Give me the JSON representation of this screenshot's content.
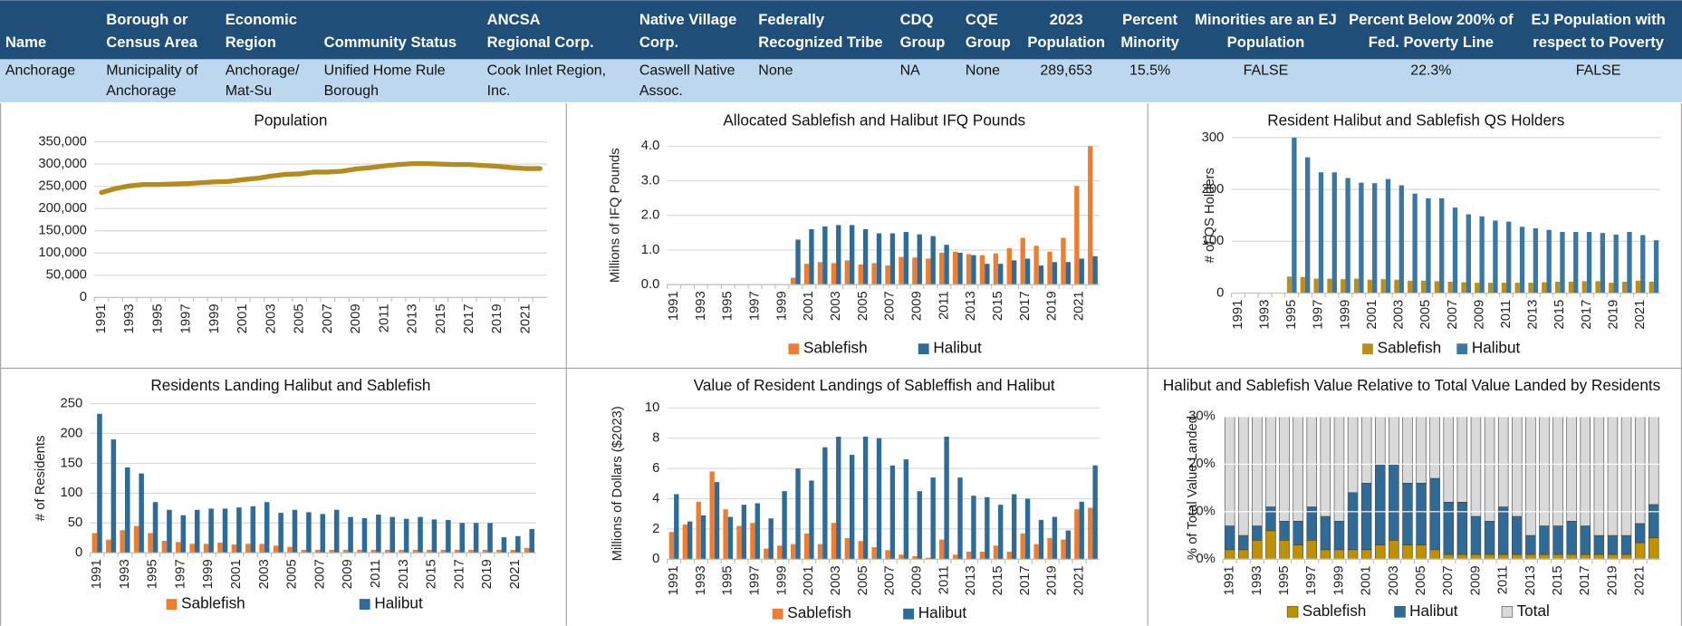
{
  "table": {
    "header": [
      [
        "Name"
      ],
      [
        "Borough or",
        "Census Area"
      ],
      [
        "Economic",
        "Region"
      ],
      [
        "Community Status"
      ],
      [
        "ANCSA",
        "Regional Corp."
      ],
      [
        "Native Village",
        "Corp."
      ],
      [
        "Federally",
        "Recognized Tribe"
      ],
      [
        "CDQ",
        "Group"
      ],
      [
        "CQE",
        "Group"
      ],
      [
        "2023",
        "Population"
      ],
      [
        "Percent",
        "Minority"
      ],
      [
        "Minorities are an EJ",
        "Population"
      ],
      [
        "Percent Below 200% of",
        "Fed. Poverty Line"
      ],
      [
        "EJ Population with",
        "respect to Poverty"
      ]
    ],
    "rows": [
      [
        [
          "Anchorage"
        ],
        [
          "Municipality of",
          "Anchorage"
        ],
        [
          "Anchorage/",
          "Mat-Su"
        ],
        [
          "Unified Home Rule",
          "Borough"
        ],
        [
          "Cook Inlet Region,",
          "Inc."
        ],
        [
          "Caswell Native",
          "Assoc."
        ],
        [
          "None"
        ],
        [
          "NA"
        ],
        [
          "None"
        ],
        [
          "289,653"
        ],
        [
          "15.5%"
        ],
        [
          "FALSE"
        ],
        [
          "22.3%"
        ],
        [
          "FALSE"
        ]
      ]
    ]
  },
  "chart_data": [
    {
      "type": "line",
      "title": "Population",
      "categories": [
        "1991",
        null,
        "1993",
        null,
        "1995",
        null,
        "1997",
        null,
        "1999",
        null,
        "2001",
        null,
        "2003",
        null,
        "2005",
        null,
        "2007",
        null,
        "2009",
        null,
        "2011",
        null,
        "2013",
        null,
        "2015",
        null,
        "2017",
        null,
        "2019",
        null,
        "2021",
        null
      ],
      "series": [
        {
          "name": "Population",
          "color": "#b58b1f",
          "values": [
            236000,
            245000,
            251000,
            254000,
            254000,
            255000,
            256000,
            258000,
            260000,
            261000,
            265000,
            268000,
            273000,
            277000,
            278000,
            282000,
            282000,
            284000,
            289000,
            292000,
            296000,
            299000,
            301000,
            301000,
            300000,
            299000,
            299000,
            297000,
            295000,
            292000,
            290000,
            290000
          ]
        }
      ],
      "ylim": [
        0,
        350000
      ],
      "yticks": [
        0,
        {
          "value": 50000,
          "label": "50,000"
        },
        {
          "value": 100000,
          "label": "100,000"
        },
        {
          "value": 150000,
          "label": "150,000"
        },
        {
          "value": 200000,
          "label": "200,000"
        },
        {
          "value": 250000,
          "label": "250,000"
        },
        {
          "value": 300000,
          "label": "300,000"
        },
        {
          "value": 350000,
          "label": "350,000"
        }
      ],
      "grid": true
    },
    {
      "type": "bar",
      "title": "Allocated Sablefish and Halibut IFQ Pounds",
      "y_label": "Millions of IFQ Pounds",
      "categories": [
        "1991",
        null,
        "1993",
        null,
        "1995",
        null,
        "1997",
        null,
        "1999",
        null,
        "2001",
        null,
        "2003",
        null,
        "2005",
        null,
        "2007",
        null,
        "2009",
        null,
        "2011",
        null,
        "2013",
        null,
        "2015",
        null,
        "2017",
        null,
        "2019",
        null,
        "2021",
        null
      ],
      "series": [
        {
          "name": "Sablefish",
          "color": "#ed7d31",
          "values": [
            0,
            0,
            0,
            0,
            0,
            0,
            0,
            0,
            0,
            0.2,
            0.6,
            0.65,
            0.62,
            0.7,
            0.58,
            0.62,
            0.55,
            0.8,
            0.78,
            0.75,
            0.92,
            0.95,
            0.88,
            0.85,
            0.9,
            1.05,
            1.35,
            1.12,
            0.95,
            1.35,
            2.85,
            4.0
          ]
        },
        {
          "name": "Halibut",
          "color": "#2e6b96",
          "values": [
            0,
            0,
            0,
            0,
            0,
            0,
            0,
            0,
            0,
            1.3,
            1.6,
            1.68,
            1.72,
            1.72,
            1.6,
            1.48,
            1.48,
            1.52,
            1.45,
            1.4,
            1.15,
            0.92,
            0.85,
            0.6,
            0.6,
            0.7,
            0.75,
            0.55,
            0.65,
            0.65,
            0.75,
            0.82
          ]
        }
      ],
      "ylim": [
        0,
        4
      ],
      "yticks": [
        {
          "value": 0,
          "label": "0.0"
        },
        {
          "value": 1,
          "label": "1.0"
        },
        {
          "value": 2,
          "label": "2.0"
        },
        {
          "value": 3,
          "label": "3.0"
        },
        {
          "value": 4,
          "label": "4.0"
        }
      ],
      "grid": true,
      "legend": "bottom"
    },
    {
      "type": "bar",
      "title": "Resident Halibut and Sablefish QS Holders",
      "y_label": "# of QS Holders",
      "categories": [
        "1991",
        null,
        "1993",
        null,
        "1995",
        null,
        "1997",
        null,
        "1999",
        null,
        "2001",
        null,
        "2003",
        null,
        "2005",
        null,
        "2007",
        null,
        "2009",
        null,
        "2011",
        null,
        "2013",
        null,
        "2015",
        null,
        "2017",
        null,
        "2019",
        null,
        "2021",
        null
      ],
      "series": [
        {
          "name": "Sablefish",
          "color": "#b8901f",
          "values": [
            0,
            0,
            0,
            0,
            32,
            31,
            28,
            28,
            27,
            28,
            26,
            27,
            26,
            24,
            24,
            23,
            22,
            21,
            20,
            20,
            20,
            20,
            20,
            21,
            22,
            22,
            23,
            23,
            20,
            22,
            24,
            22
          ]
        },
        {
          "name": "Halibut",
          "color": "#3a77a3",
          "values": [
            0,
            0,
            0,
            0,
            300,
            262,
            233,
            233,
            222,
            213,
            212,
            220,
            208,
            192,
            183,
            183,
            165,
            152,
            148,
            140,
            138,
            128,
            125,
            122,
            118,
            118,
            118,
            116,
            113,
            118,
            112,
            102
          ]
        }
      ],
      "ylim": [
        0,
        300
      ],
      "yticks": [
        0,
        100,
        200,
        300
      ],
      "grid": true,
      "legend": "bottom"
    },
    {
      "type": "bar",
      "title": "Residents Landing Halibut and Sablefish",
      "y_label": "# of Residents",
      "categories": [
        "1991",
        null,
        "1993",
        null,
        "1995",
        null,
        "1997",
        null,
        "1999",
        null,
        "2001",
        null,
        "2003",
        null,
        "2005",
        null,
        "2007",
        null,
        "2009",
        null,
        "2011",
        null,
        "2013",
        null,
        "2015",
        null,
        "2017",
        null,
        "2019",
        null,
        "2021",
        null
      ],
      "series": [
        {
          "name": "Sablefish",
          "color": "#ed7d31",
          "values": [
            33,
            22,
            38,
            45,
            33,
            20,
            18,
            15,
            15,
            17,
            14,
            15,
            15,
            12,
            10,
            5,
            5,
            5,
            5,
            5,
            5,
            5,
            5,
            5,
            5,
            5,
            5,
            5,
            5,
            5,
            5,
            8
          ]
        },
        {
          "name": "Halibut",
          "color": "#2e6b96",
          "values": [
            233,
            190,
            143,
            133,
            85,
            72,
            63,
            72,
            74,
            74,
            76,
            78,
            85,
            67,
            72,
            68,
            65,
            72,
            60,
            58,
            64,
            60,
            57,
            60,
            56,
            55,
            50,
            50,
            50,
            26,
            28,
            40
          ]
        }
      ],
      "ylim": [
        0,
        250
      ],
      "yticks": [
        0,
        50,
        100,
        150,
        200,
        250
      ],
      "grid": true,
      "legend": "bottom"
    },
    {
      "type": "bar",
      "title": "Value of Resident Landings of Sableffish and Halibut",
      "y_label": "Millions of Dollars ($2023)",
      "categories": [
        "1991",
        null,
        "1993",
        null,
        "1995",
        null,
        "1997",
        null,
        "1999",
        null,
        "2001",
        null,
        "2003",
        null,
        "2005",
        null,
        "2007",
        null,
        "2009",
        null,
        "2011",
        null,
        "2013",
        null,
        "2015",
        null,
        "2017",
        null,
        "2019",
        null,
        "2021",
        null
      ],
      "series": [
        {
          "name": "Sablefish",
          "color": "#ed7d31",
          "values": [
            1.8,
            2.3,
            3.8,
            5.8,
            3.3,
            2.2,
            2.4,
            0.7,
            0.9,
            1.0,
            1.7,
            1.0,
            2.4,
            1.4,
            1.2,
            0.8,
            0.6,
            0.3,
            0.2,
            0.1,
            1.3,
            0.3,
            0.5,
            0.5,
            0.9,
            0.5,
            1.7,
            1.0,
            1.4,
            1.3,
            3.3,
            3.4
          ]
        },
        {
          "name": "Halibut",
          "color": "#2e6b96",
          "values": [
            4.3,
            2.5,
            2.9,
            5.1,
            2.8,
            3.6,
            3.7,
            2.7,
            4.5,
            6.0,
            5.2,
            7.4,
            8.1,
            6.9,
            8.1,
            8.0,
            6.2,
            6.6,
            4.5,
            5.4,
            8.1,
            5.4,
            4.2,
            4.1,
            3.6,
            4.3,
            4.0,
            2.6,
            2.8,
            1.9,
            3.8,
            6.2
          ]
        }
      ],
      "ylim": [
        0,
        10
      ],
      "yticks": [
        0,
        2,
        4,
        6,
        8,
        10
      ],
      "grid": true,
      "legend": "bottom"
    },
    {
      "type": "stacked_bar",
      "title": "Halibut and Sablefish Value Relative to Total Value Landed by Residents",
      "y_label": "% of Total Value Landed",
      "categories": [
        "1991",
        null,
        "1993",
        null,
        "1995",
        null,
        "1997",
        null,
        "1999",
        null,
        "2001",
        null,
        "2003",
        null,
        "2005",
        null,
        "2007",
        null,
        "2009",
        null,
        "2011",
        null,
        "2013",
        null,
        "2015",
        null,
        "2017",
        null,
        "2019",
        null,
        "2021",
        null
      ],
      "series": [
        {
          "name": "Sablefish",
          "color": "#bf9000",
          "values": [
            2,
            2,
            4,
            6,
            4,
            3,
            4,
            2,
            2,
            2,
            2,
            3,
            4,
            3,
            3,
            2,
            1,
            1,
            1,
            1,
            1,
            1,
            1,
            1,
            1,
            1,
            1,
            1,
            1,
            1,
            3.5,
            4.5
          ]
        },
        {
          "name": "Halibut",
          "color": "#2f6b96",
          "values": [
            5,
            3,
            3,
            5,
            4,
            5,
            7,
            7,
            6,
            12,
            14,
            17,
            16,
            13,
            13,
            15,
            11,
            11,
            8,
            7,
            10,
            8,
            4,
            6,
            6,
            7,
            6,
            4,
            4,
            4,
            4,
            7
          ]
        },
        {
          "name": "Total",
          "color": "#d9d9d9",
          "values": [
            93,
            95,
            93,
            89,
            92,
            92,
            89,
            91,
            92,
            86,
            84,
            80,
            80,
            84,
            84,
            83,
            88,
            88,
            91,
            92,
            89,
            91,
            95,
            93,
            93,
            92,
            93,
            95,
            95,
            95,
            92.5,
            88.5
          ]
        }
      ],
      "ylim": [
        0,
        30
      ],
      "yticks": [
        {
          "value": 0,
          "label": "0%"
        },
        {
          "value": 10,
          "label": "10%"
        },
        {
          "value": 20,
          "label": "20%"
        },
        {
          "value": 30,
          "label": "30%"
        }
      ],
      "grid": true,
      "legend": "bottom"
    }
  ]
}
